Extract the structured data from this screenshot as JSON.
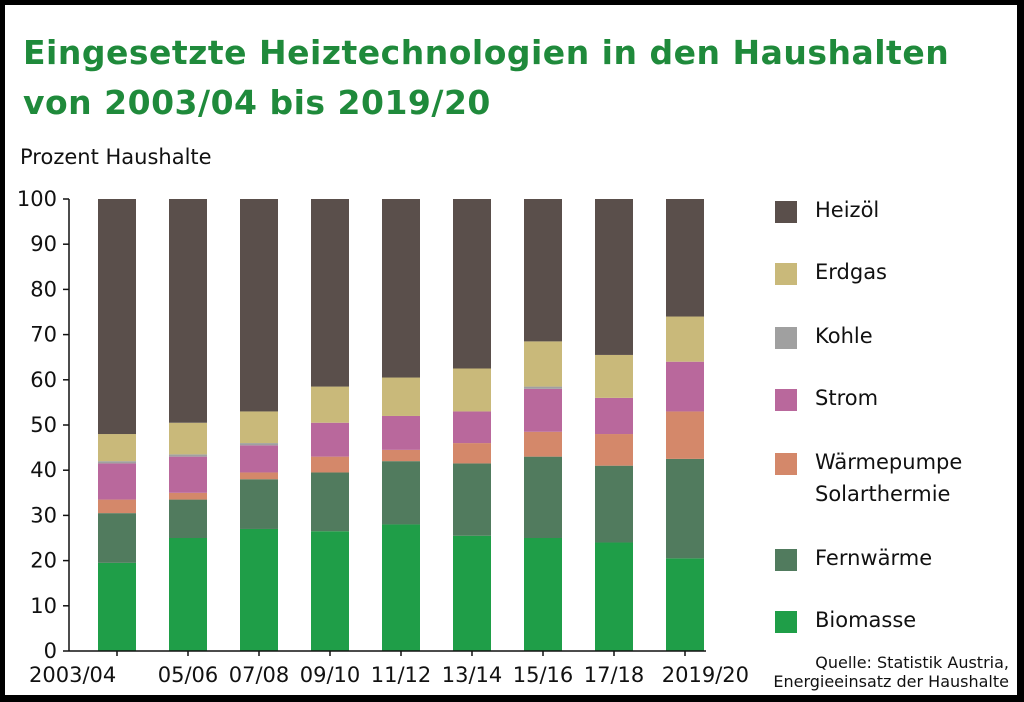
{
  "title_line1": "Eingesetzte Heiztechnologien in den Haushalten",
  "title_line2": "von 2003/04 bis 2019/20",
  "source_line1": "Quelle: Statistik Austria,",
  "source_line2": "Energieeinsatz der Haushalte",
  "chart_data": {
    "type": "bar",
    "stacked": true,
    "ylabel": "Prozent Haushalte",
    "xlabel": "",
    "ylim": [
      0,
      100
    ],
    "yticks": [
      0,
      10,
      20,
      30,
      40,
      50,
      60,
      70,
      80,
      90,
      100
    ],
    "grid": false,
    "legend_position": "right",
    "categories": [
      "2003/04",
      "05/06",
      "07/08",
      "09/10",
      "11/12",
      "13/14",
      "15/16",
      "17/18",
      "2019/20"
    ],
    "series": [
      {
        "name": "Biomasse",
        "color": "#1f9e48",
        "values": [
          19.5,
          25,
          27,
          26.5,
          28,
          25.5,
          25,
          24,
          20.5
        ]
      },
      {
        "name": "Fernwärme",
        "color": "#517b5e",
        "values": [
          11,
          8.5,
          11,
          13,
          14,
          16,
          18,
          17,
          22
        ]
      },
      {
        "name": "Wärmepumpe Solarthermie",
        "color": "#d4886a",
        "values": [
          3,
          1.5,
          1.5,
          3.5,
          2.5,
          4.5,
          5.5,
          7,
          10.5
        ]
      },
      {
        "name": "Strom",
        "color": "#b9689c",
        "values": [
          8,
          8,
          6,
          7.5,
          7.5,
          7,
          9.5,
          8,
          11
        ]
      },
      {
        "name": "Kohle",
        "color": "#a0a0a0",
        "values": [
          0.5,
          0.5,
          0.5,
          0,
          0,
          0,
          0.5,
          0,
          0
        ]
      },
      {
        "name": "Erdgas",
        "color": "#c9b97a",
        "values": [
          6,
          7,
          7,
          8,
          8.5,
          9.5,
          10,
          9.5,
          10
        ]
      },
      {
        "name": "Heizöl",
        "color": "#5a4f4b",
        "values": [
          52,
          49.5,
          47,
          41.5,
          39.5,
          37.5,
          31.5,
          34.5,
          26
        ]
      }
    ]
  }
}
